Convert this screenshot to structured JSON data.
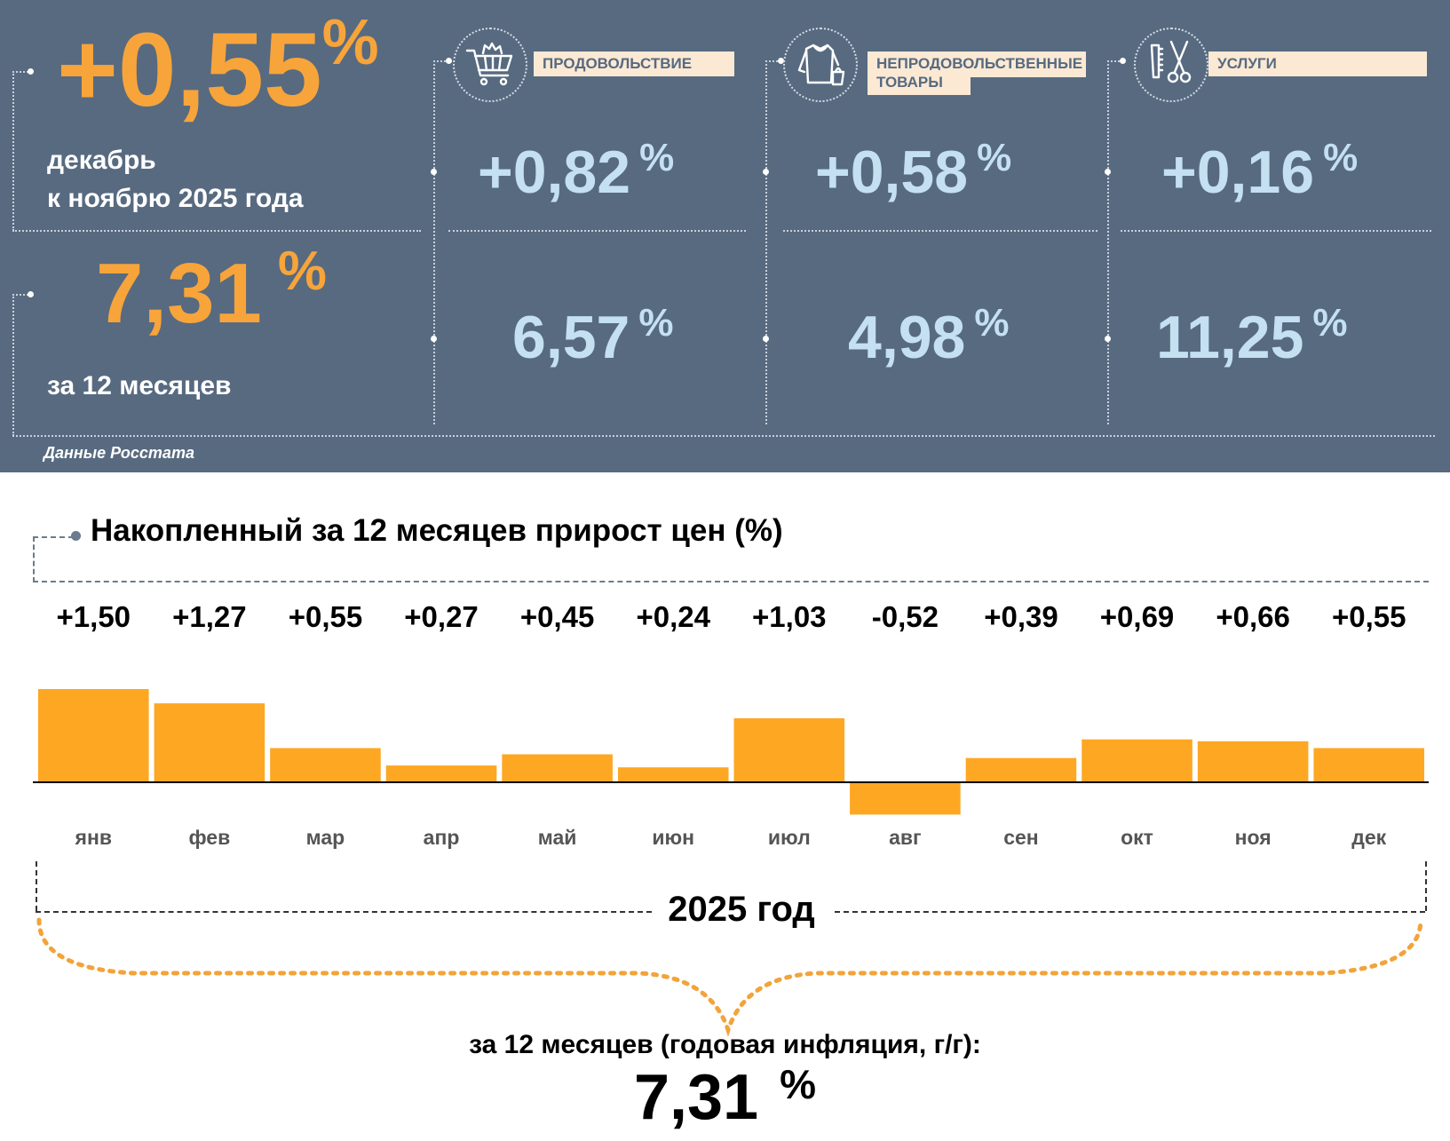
{
  "summary": {
    "monthly_value": "+0,55",
    "monthly_pct": "%",
    "monthly_caption_line1": "декабрь",
    "monthly_caption_line2": "к ноябрю 2025 года",
    "annual_value": "7,31",
    "annual_pct": "%",
    "annual_caption": "за 12 месяцев",
    "source": "Данные Росстата"
  },
  "categories": [
    {
      "label": "ПРОДОВОЛЬСТВИЕ",
      "icon": "shopping-cart-icon",
      "monthly": "+0,82",
      "annual": "6,57",
      "pct": "%"
    },
    {
      "label_line1": "НЕПРОДОВОЛЬСТВЕННЫЕ",
      "label_line2": "ТОВАРЫ",
      "icon": "clothes-icon",
      "monthly": "+0,58",
      "annual": "4,98",
      "pct": "%"
    },
    {
      "label": "УСЛУГИ",
      "icon": "hairdresser-icon",
      "monthly": "+0,16",
      "annual": "11,25",
      "pct": "%"
    }
  ],
  "chart_data": {
    "type": "bar",
    "title": "Накопленный за 12 месяцев прирост цен (%)",
    "categories": [
      "янв",
      "фев",
      "мар",
      "апр",
      "май",
      "июн",
      "июл",
      "авг",
      "сен",
      "окт",
      "ноя",
      "дек"
    ],
    "values": [
      1.5,
      1.27,
      0.55,
      0.27,
      0.45,
      0.24,
      1.03,
      -0.52,
      0.39,
      0.69,
      0.66,
      0.55
    ],
    "value_labels": [
      "+1,50",
      "+1,27",
      "+0,55",
      "+0,27",
      "+0,45",
      "+0,24",
      "+1,03",
      "-0,52",
      "+0,39",
      "+0,69",
      "+0,66",
      "+0,55"
    ],
    "bar_color": "#fea723",
    "year_label": "2025 год",
    "footer_label": "за 12 месяцев (годовая инфляция, г/г):",
    "footer_value": "7,31",
    "footer_pct": "%"
  },
  "colors": {
    "panel": "#576a80",
    "accent_orange": "#f7a43b",
    "light_blue": "#c4e0f1",
    "label_bg": "#fbe9d4"
  }
}
